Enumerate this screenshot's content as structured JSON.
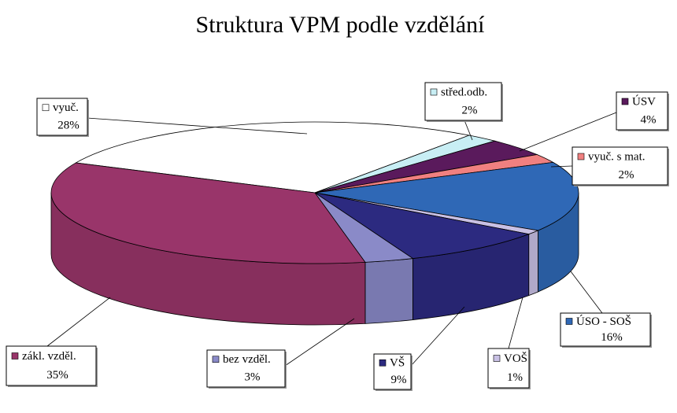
{
  "chart_data": {
    "type": "pie3d",
    "title": "Struktura VPM podle vzdělání",
    "categories": [
      "vyuč.",
      "střed.odb.",
      "ÚSV",
      "vyuč. s mat.",
      "ÚSO - SOŠ",
      "VOŠ",
      "VŠ",
      "bez vzděl.",
      "zákl. vzděl."
    ],
    "values": [
      28,
      2,
      4,
      2,
      16,
      1,
      9,
      3,
      35
    ],
    "value_labels": [
      "28%",
      "2%",
      "4%",
      "2%",
      "16%",
      "1%",
      "9%",
      "3%",
      "35%"
    ],
    "colors": [
      "#ffffff",
      "#c8eef4",
      "#5a1a5c",
      "#f08080",
      "#2f68b6",
      "#c8c0e4",
      "#2c2a80",
      "#8a8ac8",
      "#99356a"
    ]
  }
}
